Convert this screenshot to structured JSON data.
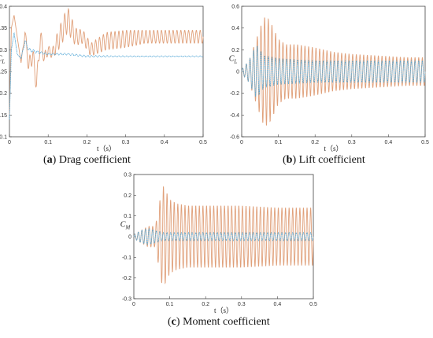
{
  "colors": {
    "series1": "#e0a07a",
    "series2": "#56a8d6",
    "axis": "#555555"
  },
  "chart_data": [
    {
      "type": "line",
      "ylabel": "C_L",
      "xlabel": "t（s）",
      "xlim": [
        0,
        0.5
      ],
      "ylim": [
        0.1,
        0.4
      ],
      "xticks": [
        "0",
        "0.1",
        "0.2",
        "0.3",
        "0.4",
        "0.5"
      ],
      "yticks": [
        "0.1",
        "0.15",
        "0.2",
        "0.25",
        "0.3",
        "0.35",
        "0.4"
      ],
      "caption_letter": "a",
      "caption_text": " Drag coefficient",
      "series": [
        {
          "color": "series1",
          "x": [
            0,
            0.005,
            0.012,
            0.02,
            0.03,
            0.04,
            0.05,
            0.06,
            0.07,
            0.08,
            0.09,
            0.1,
            0.11,
            0.12,
            0.13,
            0.15,
            0.17,
            0.19,
            0.21,
            0.25,
            0.3,
            0.35,
            0.4,
            0.45,
            0.5
          ],
          "y": [
            0.15,
            0.35,
            0.38,
            0.33,
            0.27,
            0.34,
            0.26,
            0.29,
            0.22,
            0.33,
            0.28,
            0.3,
            0.29,
            0.31,
            0.33,
            0.37,
            0.33,
            0.33,
            0.3,
            0.32,
            0.325,
            0.33,
            0.33,
            0.33,
            0.33
          ],
          "osc_amp": [
            0,
            0,
            0,
            0,
            0,
            0.01,
            0.02,
            0.02,
            0.02,
            0.02,
            0.015,
            0.01,
            0.01,
            0.02,
            0.025,
            0.03,
            0.02,
            0.015,
            0.015,
            0.02,
            0.02,
            0.015,
            0.015,
            0.015,
            0.015
          ],
          "period": 0.01
        },
        {
          "color": "series2",
          "x": [
            0,
            0.005,
            0.012,
            0.02,
            0.03,
            0.04,
            0.05,
            0.07,
            0.1,
            0.15,
            0.2,
            0.3,
            0.4,
            0.5
          ],
          "y": [
            0.14,
            0.3,
            0.34,
            0.29,
            0.28,
            0.32,
            0.3,
            0.295,
            0.29,
            0.29,
            0.285,
            0.285,
            0.285,
            0.285
          ],
          "osc_amp": [
            0,
            0,
            0,
            0,
            0,
            0.005,
            0.004,
            0.003,
            0.002,
            0.002,
            0.002,
            0.001,
            0.001,
            0.001
          ],
          "period": 0.01
        }
      ]
    },
    {
      "type": "line",
      "ylabel": "C_L",
      "xlabel": "t（s）",
      "xlim": [
        0,
        0.5
      ],
      "ylim": [
        -0.6,
        0.6
      ],
      "xticks": [
        "0",
        "0.1",
        "0.2",
        "0.3",
        "0.4",
        "0.5"
      ],
      "yticks": [
        "-0.6",
        "-0.4",
        "-0.2",
        "0",
        "0.2",
        "0.4",
        "0.6"
      ],
      "caption_letter": "b",
      "caption_text": " Lift coefficient",
      "series": [
        {
          "color": "series1",
          "x": [
            0,
            0.02,
            0.04,
            0.06,
            0.07,
            0.08,
            0.1,
            0.12,
            0.15,
            0.2,
            0.25,
            0.3,
            0.35,
            0.4,
            0.45,
            0.5
          ],
          "y": [
            0,
            0,
            0,
            0,
            0,
            0,
            0,
            0,
            0,
            0,
            0,
            0,
            0,
            0,
            0,
            0
          ],
          "osc_amp": [
            0.02,
            0.1,
            0.3,
            0.5,
            0.5,
            0.45,
            0.3,
            0.25,
            0.25,
            0.22,
            0.18,
            0.16,
            0.15,
            0.14,
            0.13,
            0.13
          ],
          "period": 0.01
        },
        {
          "color": "series2",
          "x": [
            0,
            0.02,
            0.04,
            0.06,
            0.1,
            0.15,
            0.2,
            0.3,
            0.4,
            0.5
          ],
          "y": [
            0,
            0,
            0,
            0,
            0,
            0,
            0,
            0,
            0,
            0
          ],
          "osc_amp": [
            0.02,
            0.1,
            0.25,
            0.15,
            0.12,
            0.11,
            0.1,
            0.1,
            0.1,
            0.1
          ],
          "period": 0.01
        }
      ]
    },
    {
      "type": "line",
      "ylabel": "C_M",
      "xlabel": "t（s）",
      "xlim": [
        0,
        0.5
      ],
      "ylim": [
        -0.3,
        0.3
      ],
      "xticks": [
        "0",
        "0.1",
        "0.2",
        "0.3",
        "0.4",
        "0.5"
      ],
      "yticks": [
        "-0.3",
        "-0.2",
        "-0.1",
        "0",
        "0.1",
        "0.2",
        "0.3"
      ],
      "caption_letter": "c",
      "caption_text": " Moment coefficient",
      "series": [
        {
          "color": "series1",
          "x": [
            0,
            0.02,
            0.04,
            0.06,
            0.07,
            0.08,
            0.09,
            0.1,
            0.12,
            0.15,
            0.2,
            0.3,
            0.4,
            0.5
          ],
          "y": [
            0,
            0,
            0,
            0,
            0,
            0,
            0,
            0,
            0,
            0,
            0,
            0,
            0,
            0
          ],
          "osc_amp": [
            0.01,
            0.03,
            0.05,
            0.05,
            0.15,
            0.25,
            0.22,
            0.18,
            0.16,
            0.15,
            0.15,
            0.15,
            0.14,
            0.14
          ],
          "period": 0.01
        },
        {
          "color": "series2",
          "x": [
            0,
            0.02,
            0.04,
            0.06,
            0.08,
            0.1,
            0.2,
            0.3,
            0.4,
            0.5
          ],
          "y": [
            0,
            0,
            0,
            0,
            0,
            0,
            0,
            0,
            0,
            0
          ],
          "osc_amp": [
            0.01,
            0.03,
            0.04,
            0.03,
            0.02,
            0.02,
            0.02,
            0.02,
            0.02,
            0.02
          ],
          "period": 0.01
        }
      ]
    }
  ]
}
